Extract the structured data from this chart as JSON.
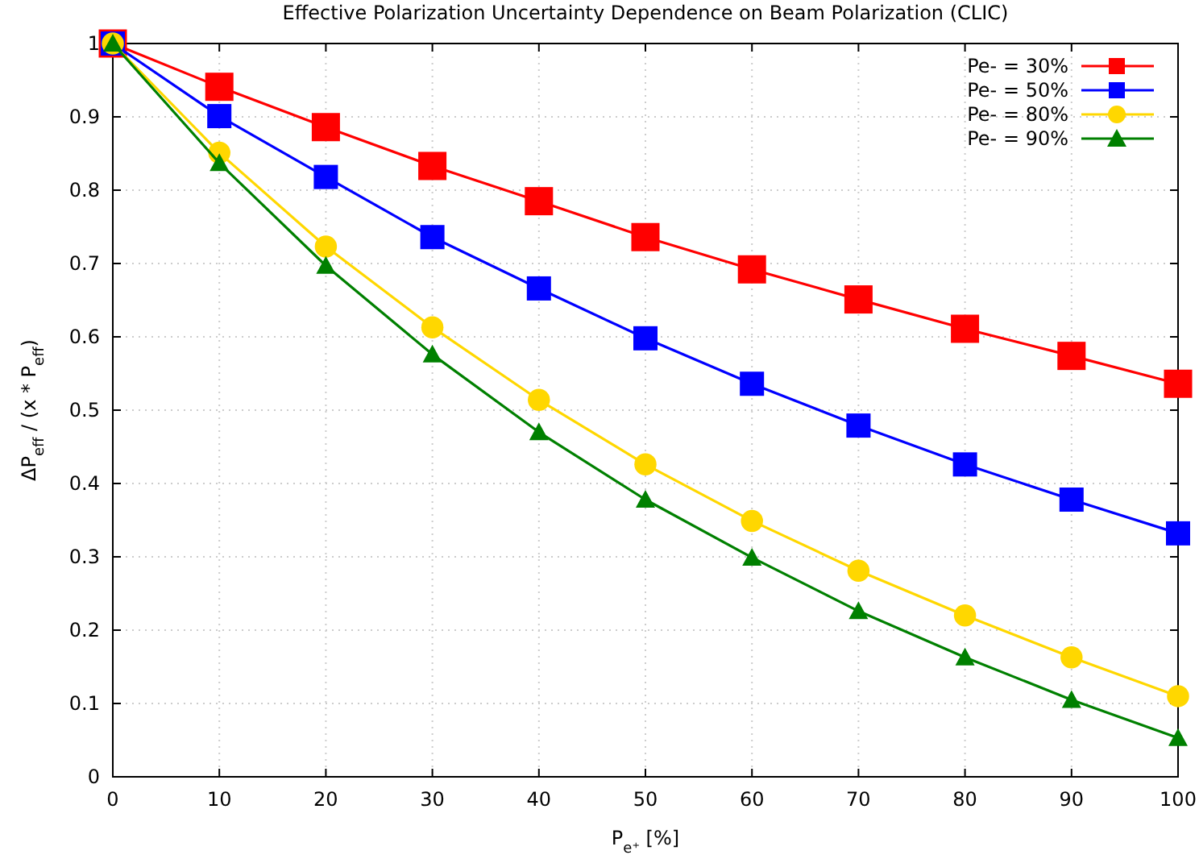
{
  "chart_data": {
    "type": "line",
    "title": "Effective Polarization Uncertainty Dependence on Beam Polarization (CLIC)",
    "xlabel": "P$_{e⁺}$ [%]",
    "ylabel": "ΔP$_{eff}$ / (x * P$_{eff}$)",
    "x": [
      0,
      10,
      20,
      30,
      40,
      50,
      60,
      70,
      80,
      90,
      100
    ],
    "series": [
      {
        "name": "Pe- = 30%",
        "color": "#ff0000",
        "marker": "square",
        "values": [
          1,
          0.941,
          0.886,
          0.833,
          0.785,
          0.736,
          0.692,
          0.651,
          0.611,
          0.574,
          0.536
        ]
      },
      {
        "name": "Pe- = 50%",
        "color": "#0000ff",
        "marker": "square",
        "values": [
          1,
          0.901,
          0.818,
          0.736,
          0.666,
          0.598,
          0.536,
          0.479,
          0.426,
          0.378,
          0.332
        ]
      },
      {
        "name": "Pe- = 80%",
        "color": "#ffd700",
        "marker": "circle",
        "values": [
          1,
          0.851,
          0.723,
          0.613,
          0.514,
          0.426,
          0.349,
          0.281,
          0.22,
          0.163,
          0.11
        ]
      },
      {
        "name": "Pe- = 90%",
        "color": "#008000",
        "marker": "triangle",
        "values": [
          1,
          0.837,
          0.697,
          0.576,
          0.47,
          0.378,
          0.299,
          0.226,
          0.163,
          0.105,
          0.053
        ]
      }
    ],
    "xlim": [
      0,
      100
    ],
    "xticks": [
      0,
      10,
      20,
      30,
      40,
      50,
      60,
      70,
      80,
      90,
      100
    ],
    "ylim": [
      0,
      1
    ],
    "yticks": [
      0,
      0.1,
      0.2,
      0.3,
      0.4,
      0.5,
      0.6,
      0.7,
      0.8,
      0.9,
      1
    ],
    "grid": true,
    "legend": "top right",
    "line_style": "solid"
  }
}
